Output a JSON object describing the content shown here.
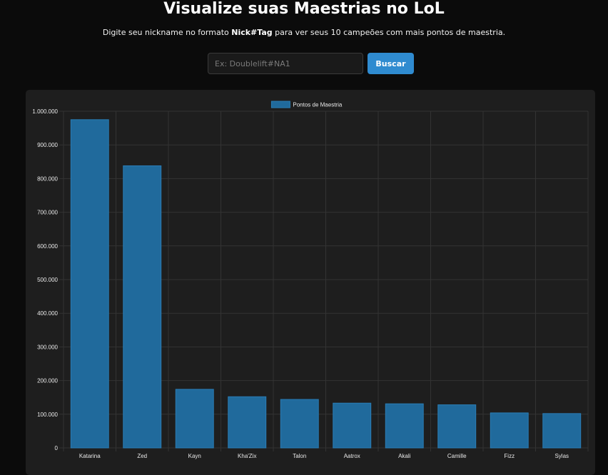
{
  "header": {
    "title": "Visualize suas Maestrias no LoL",
    "subtitle_before": "Digite seu nickname no formato ",
    "subtitle_bold": "Nick#Tag",
    "subtitle_after": " para ver seus 10 campeões com mais pontos de maestria."
  },
  "search": {
    "placeholder": "Ex: Doublelift#NA1",
    "value": "",
    "button_label": "Buscar"
  },
  "colors": {
    "bar_fill": "#206a9c",
    "bar_stroke": "#2a7db5",
    "grid": "#333333",
    "tick_text": "#e8e8e8"
  },
  "chart_data": {
    "type": "bar",
    "title": "",
    "xlabel": "",
    "ylabel": "",
    "ylim": [
      0,
      1000000
    ],
    "grid": true,
    "legend_position": "top-center",
    "y_ticks": [
      {
        "value": 0,
        "label": "0"
      },
      {
        "value": 100000,
        "label": "100.000"
      },
      {
        "value": 200000,
        "label": "200.000"
      },
      {
        "value": 300000,
        "label": "300.000"
      },
      {
        "value": 400000,
        "label": "400.000"
      },
      {
        "value": 500000,
        "label": "500.000"
      },
      {
        "value": 600000,
        "label": "600.000"
      },
      {
        "value": 700000,
        "label": "700.000"
      },
      {
        "value": 800000,
        "label": "800.000"
      },
      {
        "value": 900000,
        "label": "900.000"
      },
      {
        "value": 1000000,
        "label": "1.000.000"
      }
    ],
    "categories": [
      "Katarina",
      "Zed",
      "Kayn",
      "Kha'Zix",
      "Talon",
      "Aatrox",
      "Akali",
      "Camille",
      "Fizz",
      "Sylas"
    ],
    "series": [
      {
        "name": "Pontos de Maestria",
        "values": [
          975000,
          838000,
          174000,
          152000,
          144000,
          133000,
          131000,
          128000,
          104000,
          102000
        ]
      }
    ]
  }
}
